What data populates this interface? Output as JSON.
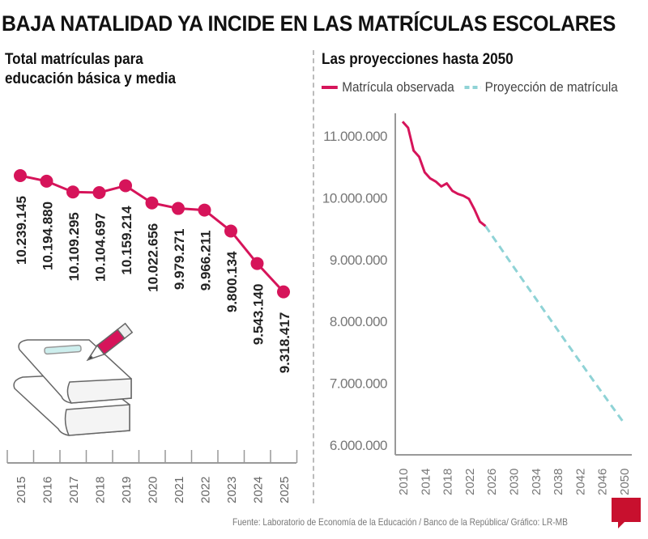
{
  "title": "BAJA NATALIDAD YA INCIDE EN LAS MATRÍCULAS ESCOLARES",
  "source": "Fuente: Laboratorio de Economía de la Educación / Banco de la República/ Gráfico: LR-MB",
  "logo": "LR",
  "colors": {
    "observed": "#d6145a",
    "projection": "#8fd3d6"
  },
  "chart_data": [
    {
      "type": "line",
      "title": "Total matrículas para educación básica y media",
      "title_lines": [
        "Total matrículas para",
        "educación básica y media"
      ],
      "categories": [
        "2015",
        "2016",
        "2017",
        "2018",
        "2019",
        "2020",
        "2021",
        "2022",
        "2023",
        "2024",
        "2025"
      ],
      "values": [
        10239145,
        10194880,
        10109295,
        10104697,
        10159214,
        10022656,
        9979271,
        9966211,
        9800134,
        9543140,
        9318417
      ],
      "labels": [
        "10.239.145",
        "10.194.880",
        "10.109.295",
        "10.104.697",
        "10.159.214",
        "10.022.656",
        "9.979.271",
        "9.966.211",
        "9.800.134",
        "9.543.140",
        "9.318.417"
      ]
    },
    {
      "type": "line",
      "title": "Las proyecciones hasta 2050",
      "legend": [
        "Matrícula observada",
        "Proyección de matrícula"
      ],
      "legend_position": "top",
      "ylim": [
        6000000,
        11000000
      ],
      "yticks": [
        "11.000.000",
        "10.000.000",
        "9.000.000",
        "8.000.000",
        "7.000.000",
        "6.000.000"
      ],
      "ytick_values": [
        11000000,
        10000000,
        9000000,
        8000000,
        7000000,
        6000000
      ],
      "xlim": [
        2010,
        2050
      ],
      "xticks": [
        "2010",
        "2014",
        "2018",
        "2022",
        "2026",
        "2030",
        "2034",
        "2038",
        "2042",
        "2046",
        "2050"
      ],
      "series": [
        {
          "name": "Matrícula observada",
          "x": [
            2010,
            2011,
            2012,
            2013,
            2014,
            2015,
            2016,
            2017,
            2018,
            2019,
            2020,
            2021,
            2022,
            2023,
            2024,
            2025
          ],
          "y": [
            11220000,
            11120000,
            10750000,
            10650000,
            10400000,
            10300000,
            10250000,
            10170000,
            10220000,
            10100000,
            10050000,
            10020000,
            9970000,
            9800000,
            9600000,
            9530000
          ]
        },
        {
          "name": "Proyección de matrícula",
          "x": [
            2025,
            2030,
            2035,
            2040,
            2045,
            2050
          ],
          "y": [
            9530000,
            8880000,
            8240000,
            7600000,
            6970000,
            6350000
          ]
        }
      ]
    }
  ]
}
